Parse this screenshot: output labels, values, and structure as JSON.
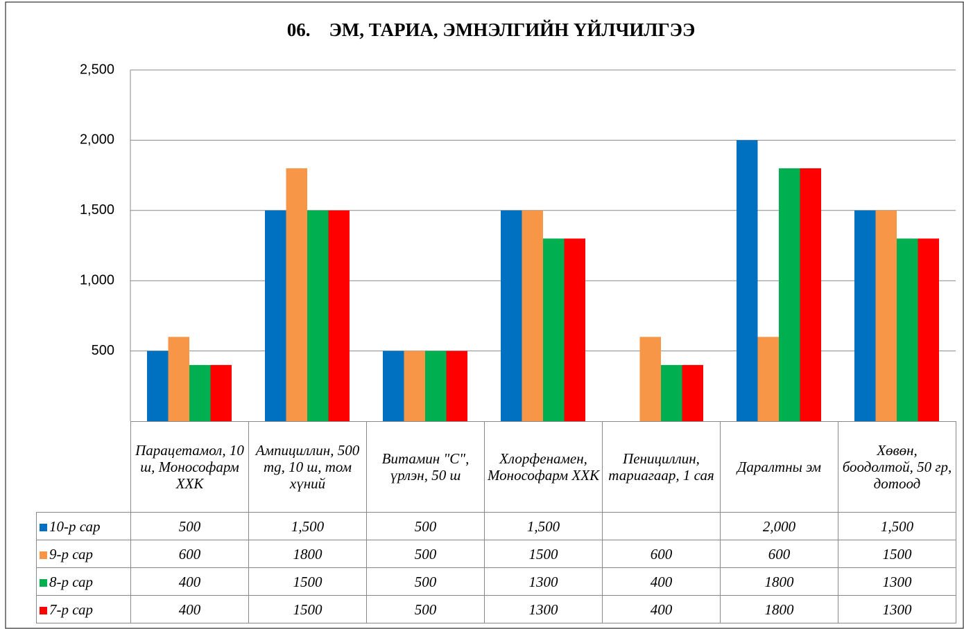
{
  "chart_data": {
    "type": "bar",
    "title": "06.    ЭМ, ТАРИА, ЭМНЭЛГИЙН ҮЙЛЧИЛГЭЭ",
    "categories": [
      "Парацетамол, 10 ш, Монософарм ХХК",
      "Ампициллин, 500 mg, 10 ш, том хүний",
      "Витамин \"С\", үрлэн, 50 ш",
      "Хлорфенамен, Монософарм ХХК",
      "Пенициллин, тариагаар, 1 сая",
      "Даралтны эм",
      "Хөвөн, боодолтой, 50 гр, дотоод"
    ],
    "series": [
      {
        "name": "10-р сар",
        "color": "#0070c0",
        "values": [
          500,
          1500,
          500,
          1500,
          null,
          2000,
          1500
        ],
        "value_labels": [
          "500",
          "1,500",
          "500",
          "1,500",
          null,
          "2,000",
          "1,500"
        ]
      },
      {
        "name": "9-р сар",
        "color": "#f79646",
        "values": [
          600,
          1800,
          500,
          1500,
          600,
          600,
          1500
        ]
      },
      {
        "name": "8-р сар",
        "color": "#00b050",
        "values": [
          400,
          1500,
          500,
          1300,
          400,
          1800,
          1300
        ]
      },
      {
        "name": "7-р сар",
        "color": "#ff0000",
        "values": [
          400,
          1500,
          500,
          1300,
          400,
          1800,
          1300
        ]
      }
    ],
    "ylim": [
      0,
      2500
    ],
    "yticks": [
      500,
      {
        "value": 1000,
        "label": "1,000"
      },
      {
        "value": 1500,
        "label": "1,500"
      },
      {
        "value": 2000,
        "label": "2,000"
      },
      {
        "value": 2500,
        "label": "2,500"
      }
    ],
    "grid": true
  }
}
